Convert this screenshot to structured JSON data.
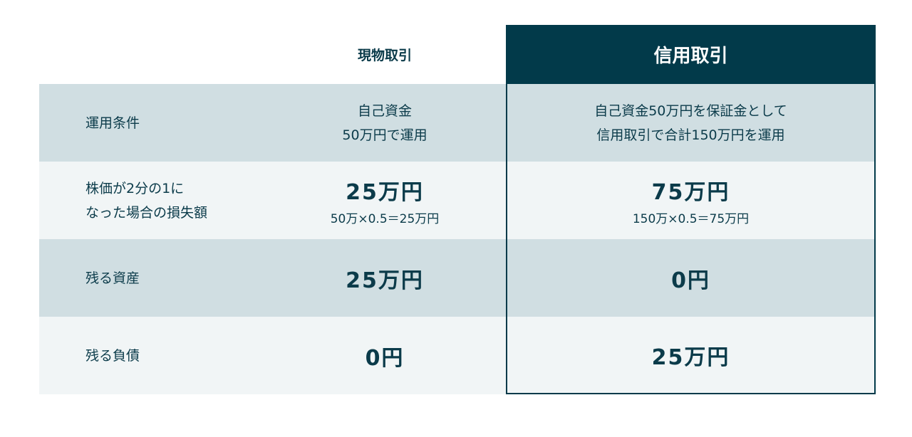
{
  "colors": {
    "accent": "#023a4a",
    "row_dark": "#d0dee2",
    "row_light": "#f1f5f6"
  },
  "header": {
    "spot": "現物取引",
    "margin": "信用取引"
  },
  "rows": [
    {
      "label": [
        "運用条件"
      ],
      "spot": [
        "自己資金",
        "50万円で運用"
      ],
      "margin": [
        "自己資金50万円を保証金として",
        "信用取引で合計150万円を運用"
      ]
    },
    {
      "label": [
        "株価が2分の1に",
        "なった場合の損失額"
      ],
      "spot": "25万円",
      "spot_sub": "50万×0.5＝25万円",
      "margin": "75万円",
      "margin_sub": "150万×0.5＝75万円"
    },
    {
      "label": [
        "残る資産"
      ],
      "spot": "25万円",
      "margin": "0円"
    },
    {
      "label": [
        "残る負債"
      ],
      "spot": "0円",
      "margin": "25万円"
    }
  ]
}
